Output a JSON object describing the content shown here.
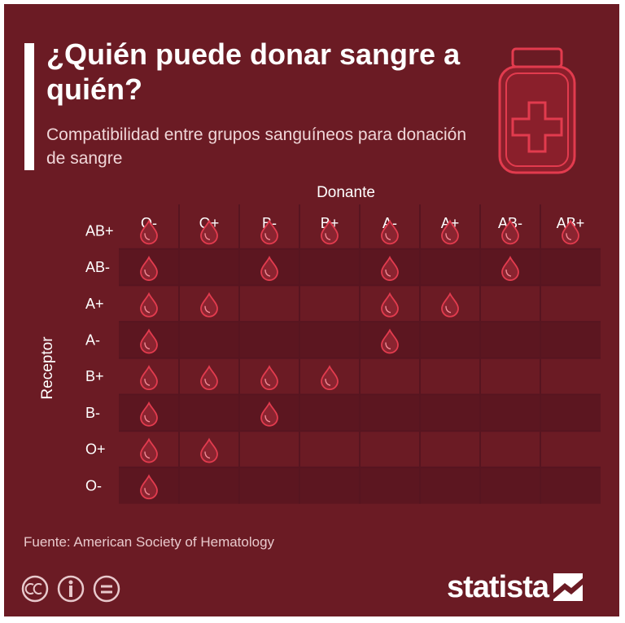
{
  "chart_data": {
    "type": "table",
    "title": "¿Quién puede donar sangre a quién?",
    "subtitle": "Compatibilidad entre grupos sanguíneos para donación de sangre",
    "xlabel": "Donante",
    "ylabel": "Receptor",
    "columns": [
      "O-",
      "O+",
      "B-",
      "B+",
      "A-",
      "A+",
      "AB-",
      "AB+"
    ],
    "rows": [
      "AB+",
      "AB-",
      "A+",
      "A-",
      "B+",
      "B-",
      "O+",
      "O-"
    ],
    "matrix": [
      [
        1,
        1,
        1,
        1,
        1,
        1,
        1,
        1
      ],
      [
        1,
        0,
        1,
        0,
        1,
        0,
        1,
        0
      ],
      [
        1,
        1,
        0,
        0,
        1,
        1,
        0,
        0
      ],
      [
        1,
        0,
        0,
        0,
        1,
        0,
        0,
        0
      ],
      [
        1,
        1,
        1,
        1,
        0,
        0,
        0,
        0
      ],
      [
        1,
        0,
        1,
        0,
        0,
        0,
        0,
        0
      ],
      [
        1,
        1,
        0,
        0,
        0,
        0,
        0,
        0
      ],
      [
        1,
        0,
        0,
        0,
        0,
        0,
        0,
        0
      ]
    ],
    "mark_icon": "blood-drop-icon"
  },
  "footer": {
    "source": "Fuente: American Society of Hematology",
    "brand": "statista"
  },
  "colors": {
    "background": "#6b1b24",
    "drop_outline": "#e23b4e",
    "drop_fill": "#8a2430",
    "row_band": "#5c1620",
    "text": "#ffffff"
  }
}
